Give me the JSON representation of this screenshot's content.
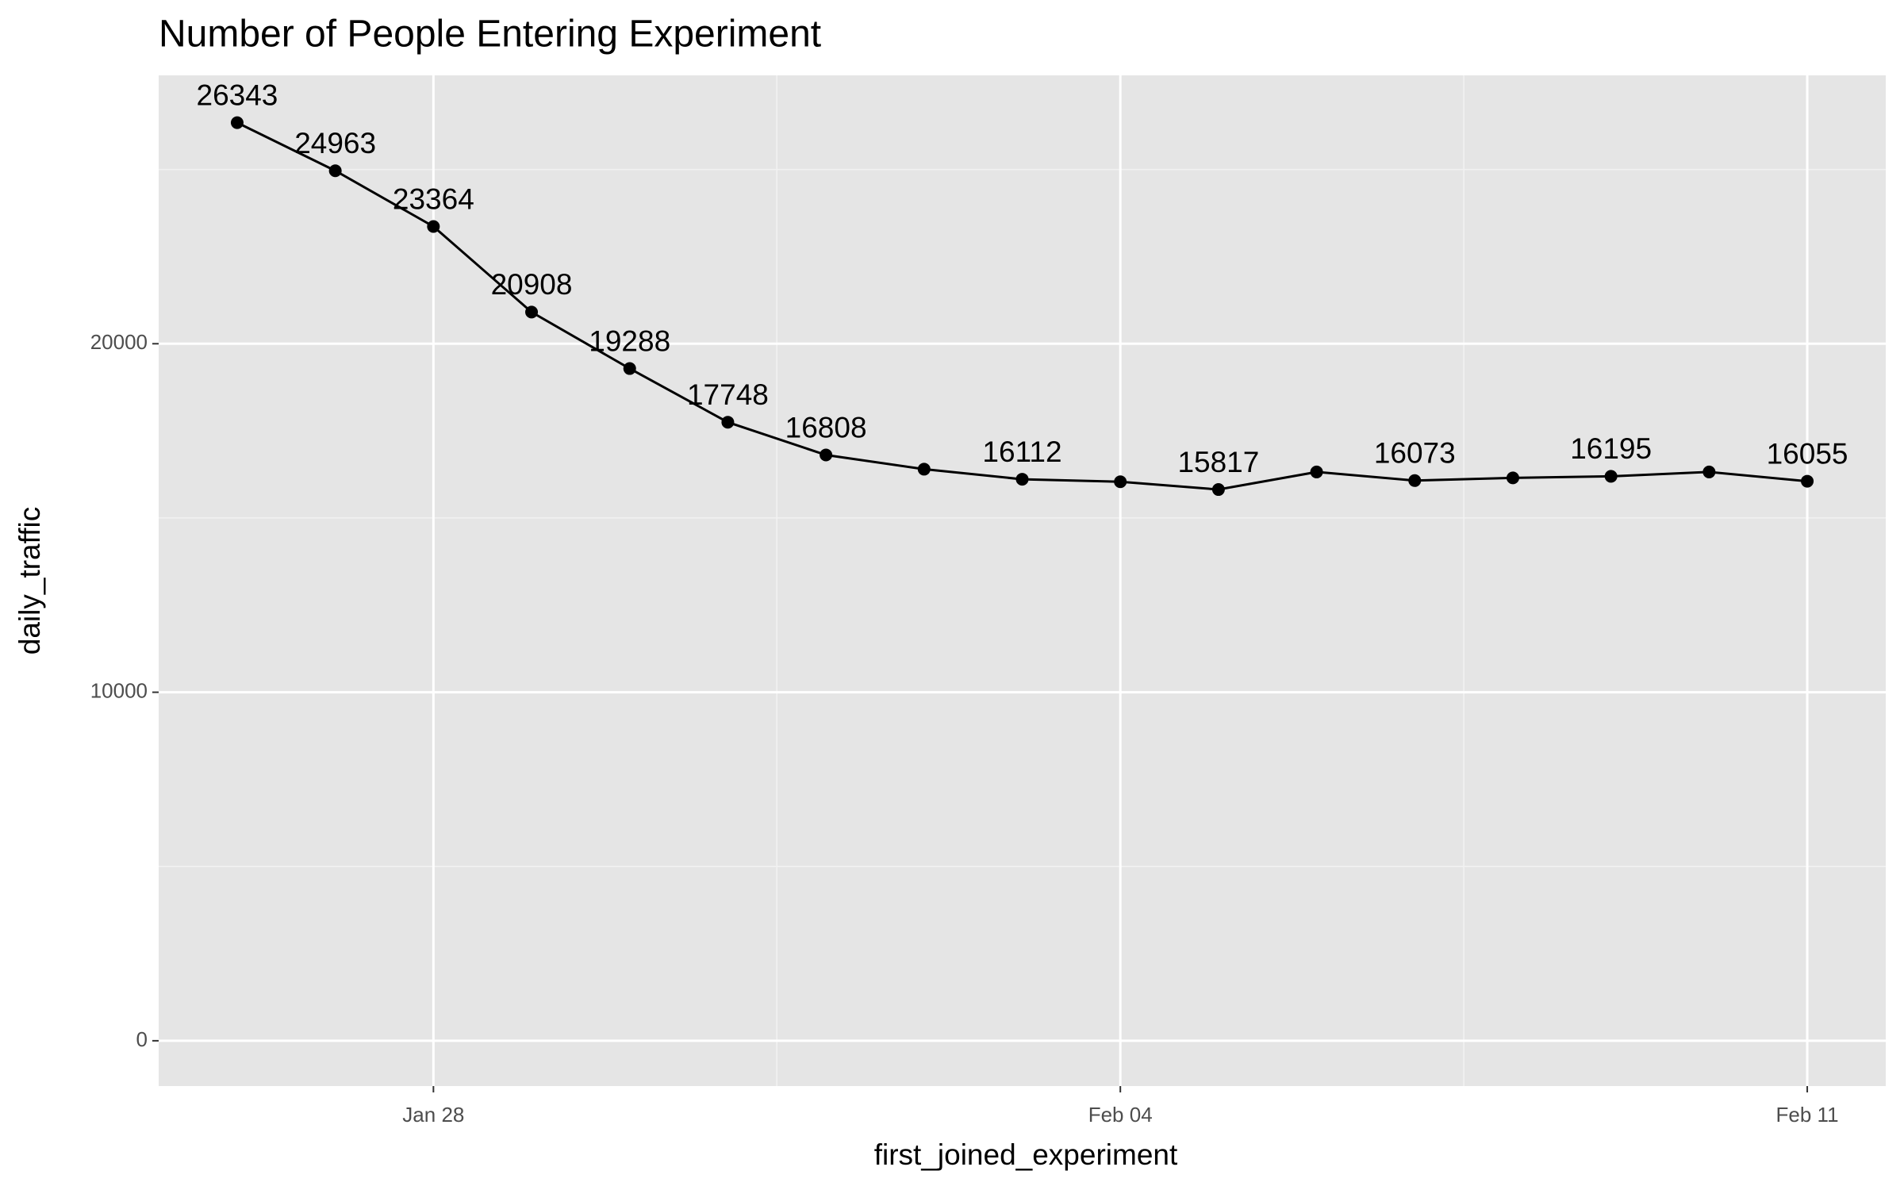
{
  "chart_data": {
    "type": "line",
    "title": "Number of People Entering Experiment",
    "x_label": "first_joined_experiment",
    "y_label": "daily_traffic",
    "x": [
      "Jan 26",
      "Jan 27",
      "Jan 28",
      "Jan 29",
      "Jan 30",
      "Jan 31",
      "Feb 01",
      "Feb 02",
      "Feb 03",
      "Feb 04",
      "Feb 05",
      "Feb 06",
      "Feb 07",
      "Feb 08",
      "Feb 09",
      "Feb 10",
      "Feb 11"
    ],
    "values": [
      26343,
      24963,
      23364,
      20908,
      19288,
      17748,
      16808,
      16400,
      16112,
      16040,
      15817,
      16320,
      16073,
      16150,
      16195,
      16320,
      16055
    ],
    "value_labels": [
      "26343",
      "24963",
      "23364",
      "20908",
      "19288",
      "17748",
      "16808",
      null,
      "16112",
      null,
      "15817",
      null,
      "16073",
      null,
      "16195",
      null,
      "16055"
    ],
    "color": "#000000",
    "xticks": [
      "Jan 28",
      "Feb 04",
      "Feb 11"
    ],
    "ylim": [
      -1300,
      27700
    ],
    "yticks": [
      0,
      10000,
      20000
    ],
    "yminor": [
      5000,
      15000,
      25000
    ],
    "grid": true
  }
}
